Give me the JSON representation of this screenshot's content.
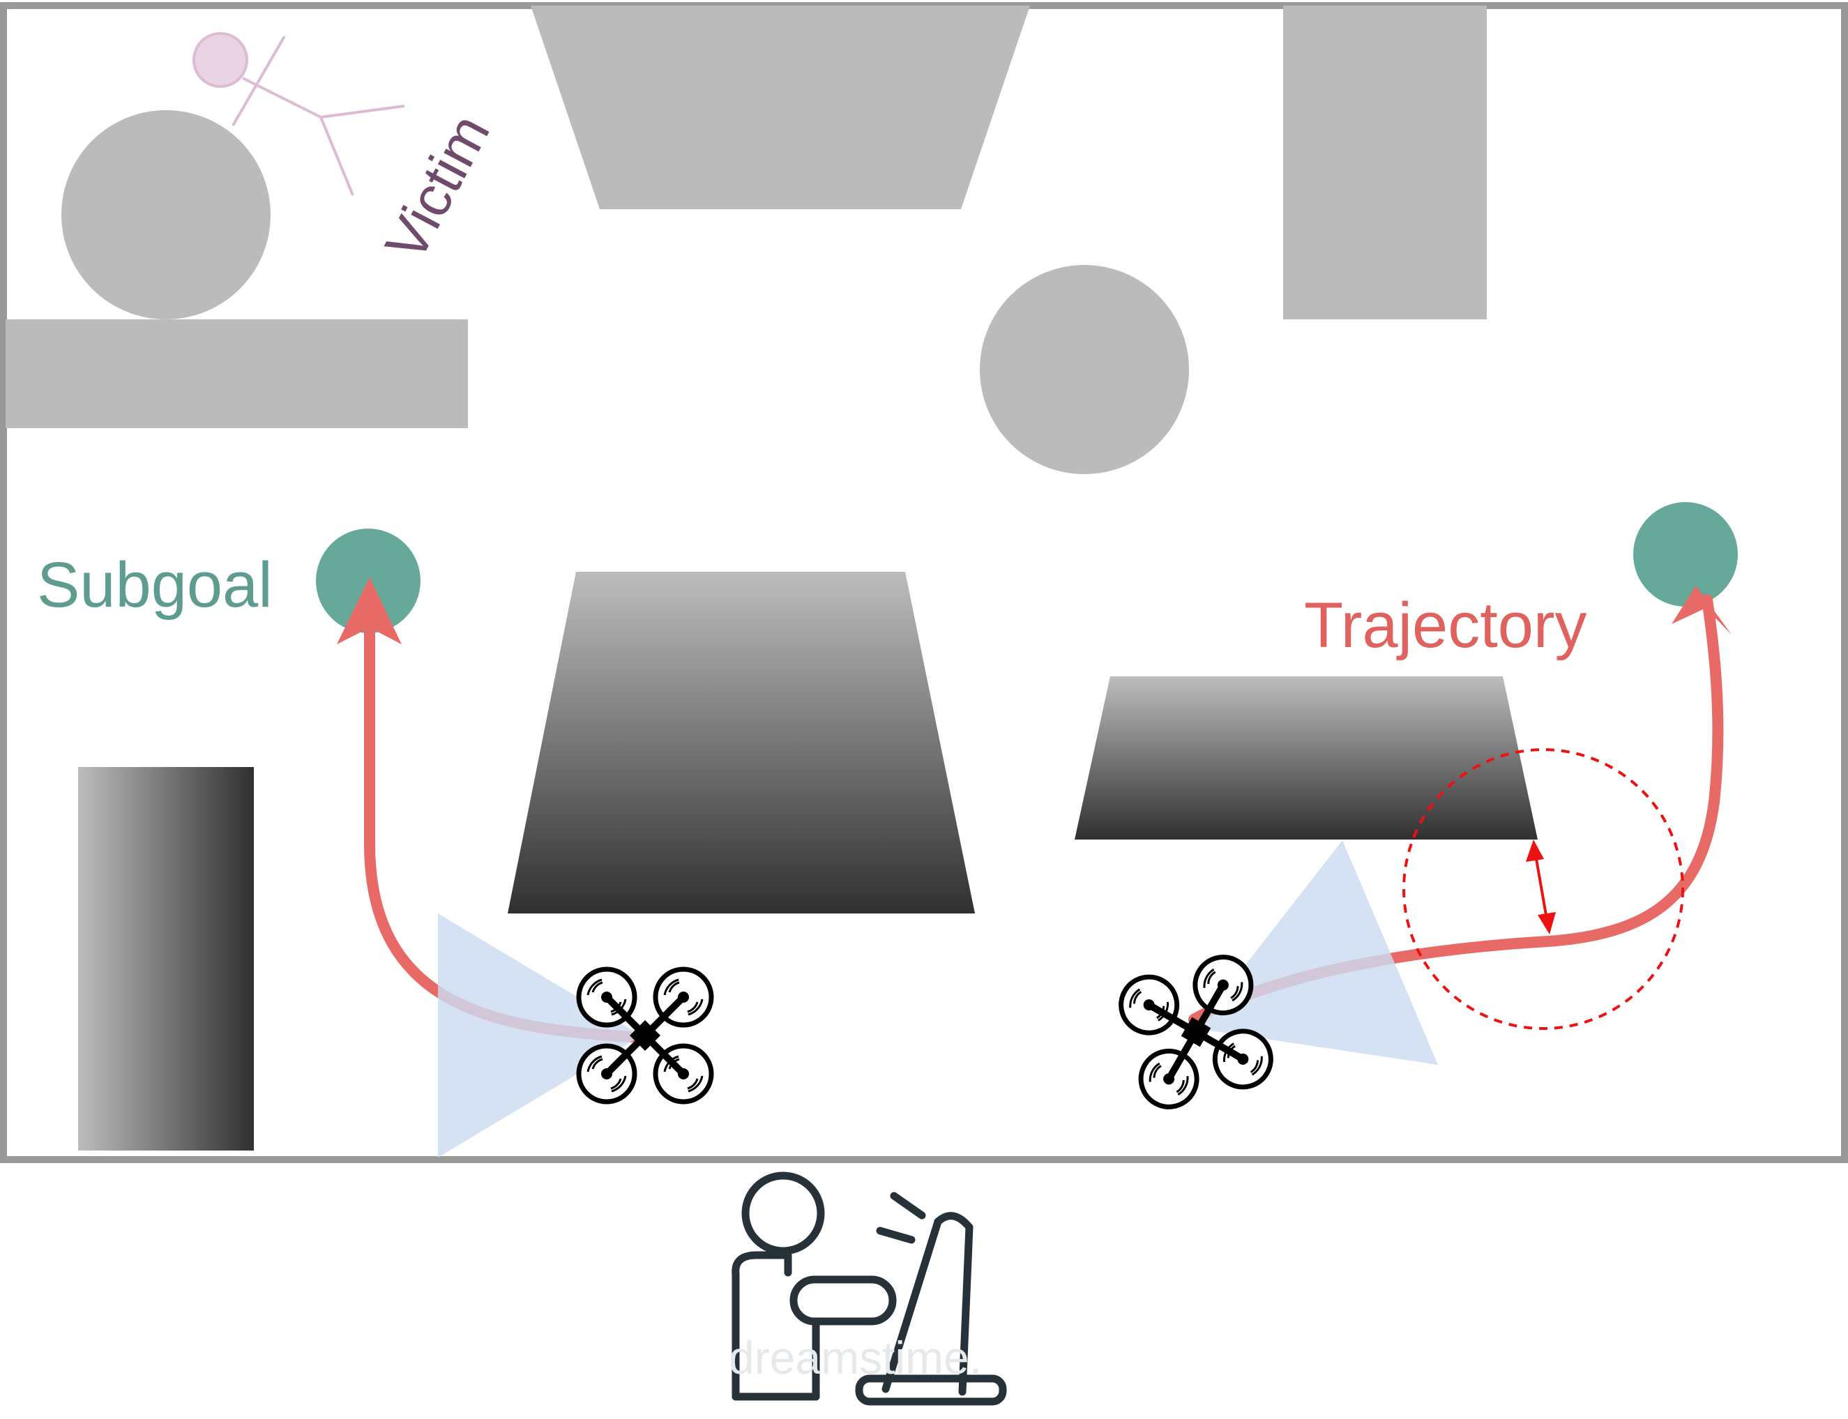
{
  "labels": {
    "victim": "Victim",
    "subgoal": "Subgoal",
    "trajectory": "Trajectory",
    "watermark": "dreamstime."
  },
  "colors": {
    "obstacle": "#bbbbbb",
    "frame": "#999999",
    "subgoal": "#66a99b",
    "trajectory": "#e86a66",
    "clearance": "#ee1111",
    "victim": "#6f4a6a",
    "victim_figure": "#dcbcd4",
    "camera_fov": "#ccdcf2",
    "drone": "#000000",
    "operator": "#263238"
  },
  "icons": {
    "drone": "quadcopter-icon",
    "operator": "operator-at-computer-icon",
    "victim": "stick-figure-icon"
  }
}
